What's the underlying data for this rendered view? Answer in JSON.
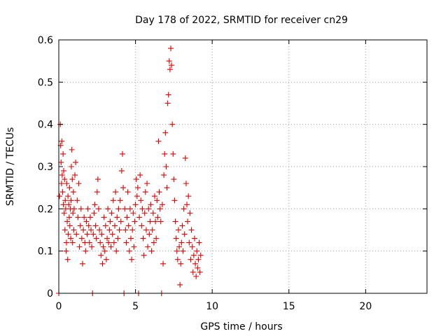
{
  "chart_data": {
    "type": "scatter",
    "title": "Day 178 of 2022, SRMTID for receiver cn29",
    "xlabel": "GPS time / hours",
    "ylabel": "SRMTID / TECUs",
    "xlim": [
      0,
      24
    ],
    "ylim": [
      0,
      0.6
    ],
    "xticks": [
      0,
      5,
      10,
      15,
      20
    ],
    "yticks": [
      0,
      0.1,
      0.2,
      0.3,
      0.4,
      0.5,
      0.6
    ],
    "xtick_labels": [
      "0",
      "5",
      "10",
      "15",
      "20"
    ],
    "ytick_labels": [
      "0",
      "0.1",
      "0.2",
      "0.3",
      "0.4",
      "0.5",
      "0.6"
    ],
    "grid": true,
    "legend": "none",
    "series": [
      {
        "name": "cn29",
        "marker": "+",
        "color": "#e00000",
        "points": [
          [
            0.0,
            0.0
          ],
          [
            0.05,
            0.23
          ],
          [
            0.1,
            0.4
          ],
          [
            0.12,
            0.35
          ],
          [
            0.15,
            0.31
          ],
          [
            0.18,
            0.26
          ],
          [
            0.2,
            0.36
          ],
          [
            0.22,
            0.28
          ],
          [
            0.25,
            0.24
          ],
          [
            0.28,
            0.33
          ],
          [
            0.3,
            0.21
          ],
          [
            0.32,
            0.29
          ],
          [
            0.35,
            0.19
          ],
          [
            0.38,
            0.27
          ],
          [
            0.4,
            0.15
          ],
          [
            0.42,
            0.22
          ],
          [
            0.45,
            0.2
          ],
          [
            0.48,
            0.1
          ],
          [
            0.5,
            0.12
          ],
          [
            0.52,
            0.26
          ],
          [
            0.55,
            0.17
          ],
          [
            0.58,
            0.08
          ],
          [
            0.6,
            0.23
          ],
          [
            0.62,
            0.14
          ],
          [
            0.65,
            0.21
          ],
          [
            0.68,
            0.18
          ],
          [
            0.7,
            0.25
          ],
          [
            0.72,
            0.16
          ],
          [
            0.75,
            0.2
          ],
          [
            0.78,
            0.13
          ],
          [
            0.8,
            0.22
          ],
          [
            0.82,
            0.3
          ],
          [
            0.85,
            0.34
          ],
          [
            0.88,
            0.27
          ],
          [
            0.9,
            0.12
          ],
          [
            0.92,
            0.19
          ],
          [
            0.95,
            0.24
          ],
          [
            0.98,
            0.15
          ],
          [
            1.0,
            0.2
          ],
          [
            1.05,
            0.28
          ],
          [
            1.1,
            0.31
          ],
          [
            1.15,
            0.14
          ],
          [
            1.2,
            0.22
          ],
          [
            1.25,
            0.18
          ],
          [
            1.3,
            0.26
          ],
          [
            1.35,
            0.11
          ],
          [
            1.4,
            0.16
          ],
          [
            1.45,
            0.2
          ],
          [
            1.5,
            0.13
          ],
          [
            1.55,
            0.07
          ],
          [
            1.6,
            0.15
          ],
          [
            1.65,
            0.18
          ],
          [
            1.7,
            0.12
          ],
          [
            1.75,
            0.1
          ],
          [
            1.8,
            0.17
          ],
          [
            1.85,
            0.14
          ],
          [
            1.9,
            0.2
          ],
          [
            1.95,
            0.16
          ],
          [
            2.0,
            0.12
          ],
          [
            2.05,
            0.18
          ],
          [
            2.1,
            0.15
          ],
          [
            2.15,
            0.11
          ],
          [
            2.2,
            0.0
          ],
          [
            2.25,
            0.14
          ],
          [
            2.3,
            0.19
          ],
          [
            2.35,
            0.21
          ],
          [
            2.4,
            0.16
          ],
          [
            2.45,
            0.13
          ],
          [
            2.5,
            0.24
          ],
          [
            2.55,
            0.27
          ],
          [
            2.6,
            0.2
          ],
          [
            2.65,
            0.15
          ],
          [
            2.7,
            0.12
          ],
          [
            2.75,
            0.09
          ],
          [
            2.8,
            0.14
          ],
          [
            2.85,
            0.07
          ],
          [
            2.9,
            0.11
          ],
          [
            2.95,
            0.18
          ],
          [
            3.0,
            0.1
          ],
          [
            3.05,
            0.16
          ],
          [
            3.1,
            0.08
          ],
          [
            3.15,
            0.13
          ],
          [
            3.2,
            0.2
          ],
          [
            3.25,
            0.12
          ],
          [
            3.3,
            0.15
          ],
          [
            3.35,
            0.17
          ],
          [
            3.4,
            0.11
          ],
          [
            3.45,
            0.19
          ],
          [
            3.5,
            0.14
          ],
          [
            3.55,
            0.22
          ],
          [
            3.6,
            0.12
          ],
          [
            3.65,
            0.16
          ],
          [
            3.7,
            0.24
          ],
          [
            3.75,
            0.1
          ],
          [
            3.8,
            0.18
          ],
          [
            3.85,
            0.13
          ],
          [
            3.9,
            0.2
          ],
          [
            3.95,
            0.15
          ],
          [
            4.0,
            0.22
          ],
          [
            4.05,
            0.17
          ],
          [
            4.1,
            0.29
          ],
          [
            4.15,
            0.33
          ],
          [
            4.2,
            0.25
          ],
          [
            4.25,
            0.0
          ],
          [
            4.3,
            0.2
          ],
          [
            4.35,
            0.15
          ],
          [
            4.4,
            0.12
          ],
          [
            4.45,
            0.18
          ],
          [
            4.5,
            0.24
          ],
          [
            4.55,
            0.16
          ],
          [
            4.6,
            0.1
          ],
          [
            4.65,
            0.2
          ],
          [
            4.7,
            0.13
          ],
          [
            4.75,
            0.08
          ],
          [
            4.8,
            0.15
          ],
          [
            4.85,
            0.19
          ],
          [
            4.9,
            0.11
          ],
          [
            4.95,
            0.17
          ],
          [
            5.0,
            0.21
          ],
          [
            5.05,
            0.27
          ],
          [
            5.1,
            0.23
          ],
          [
            5.15,
            0.25
          ],
          [
            5.2,
            0.0
          ],
          [
            5.25,
            0.18
          ],
          [
            5.3,
            0.28
          ],
          [
            5.35,
            0.22
          ],
          [
            5.4,
            0.16
          ],
          [
            5.45,
            0.2
          ],
          [
            5.5,
            0.13
          ],
          [
            5.55,
            0.09
          ],
          [
            5.6,
            0.19
          ],
          [
            5.65,
            0.24
          ],
          [
            5.7,
            0.15
          ],
          [
            5.75,
            0.26
          ],
          [
            5.8,
            0.11
          ],
          [
            5.85,
            0.2
          ],
          [
            5.9,
            0.14
          ],
          [
            5.95,
            0.17
          ],
          [
            6.0,
            0.21
          ],
          [
            6.05,
            0.1
          ],
          [
            6.1,
            0.15
          ],
          [
            6.15,
            0.19
          ],
          [
            6.2,
            0.12
          ],
          [
            6.25,
            0.23
          ],
          [
            6.3,
            0.17
          ],
          [
            6.35,
            0.13
          ],
          [
            6.4,
            0.22
          ],
          [
            6.45,
            0.18
          ],
          [
            6.5,
            0.36
          ],
          [
            6.55,
            0.24
          ],
          [
            6.6,
            0.2
          ],
          [
            6.65,
            0.17
          ],
          [
            6.7,
            0.0
          ],
          [
            6.75,
            0.21
          ],
          [
            6.8,
            0.07
          ],
          [
            6.85,
            0.28
          ],
          [
            6.9,
            0.33
          ],
          [
            6.95,
            0.38
          ],
          [
            7.0,
            0.3
          ],
          [
            7.05,
            0.25
          ],
          [
            7.1,
            0.45
          ],
          [
            7.15,
            0.47
          ],
          [
            7.2,
            0.55
          ],
          [
            7.25,
            0.53
          ],
          [
            7.3,
            0.58
          ],
          [
            7.35,
            0.54
          ],
          [
            7.4,
            0.4
          ],
          [
            7.45,
            0.33
          ],
          [
            7.5,
            0.27
          ],
          [
            7.55,
            0.22
          ],
          [
            7.6,
            0.17
          ],
          [
            7.65,
            0.13
          ],
          [
            7.7,
            0.1
          ],
          [
            7.75,
            0.08
          ],
          [
            7.8,
            0.15
          ],
          [
            7.85,
            0.11
          ],
          [
            7.9,
            0.02
          ],
          [
            7.95,
            0.07
          ],
          [
            8.0,
            0.12
          ],
          [
            8.05,
            0.16
          ],
          [
            8.1,
            0.1
          ],
          [
            8.15,
            0.2
          ],
          [
            8.2,
            0.14
          ],
          [
            8.25,
            0.32
          ],
          [
            8.3,
            0.26
          ],
          [
            8.35,
            0.21
          ],
          [
            8.4,
            0.17
          ],
          [
            8.45,
            0.23
          ],
          [
            8.5,
            0.12
          ],
          [
            8.55,
            0.19
          ],
          [
            8.6,
            0.08
          ],
          [
            8.65,
            0.15
          ],
          [
            8.7,
            0.11
          ],
          [
            8.75,
            0.05
          ],
          [
            8.8,
            0.09
          ],
          [
            8.85,
            0.13
          ],
          [
            8.9,
            0.07
          ],
          [
            8.95,
            0.04
          ],
          [
            9.0,
            0.1
          ],
          [
            9.05,
            0.06
          ],
          [
            9.1,
            0.08
          ],
          [
            9.15,
            0.12
          ],
          [
            9.2,
            0.05
          ],
          [
            9.25,
            0.09
          ]
        ]
      }
    ]
  }
}
